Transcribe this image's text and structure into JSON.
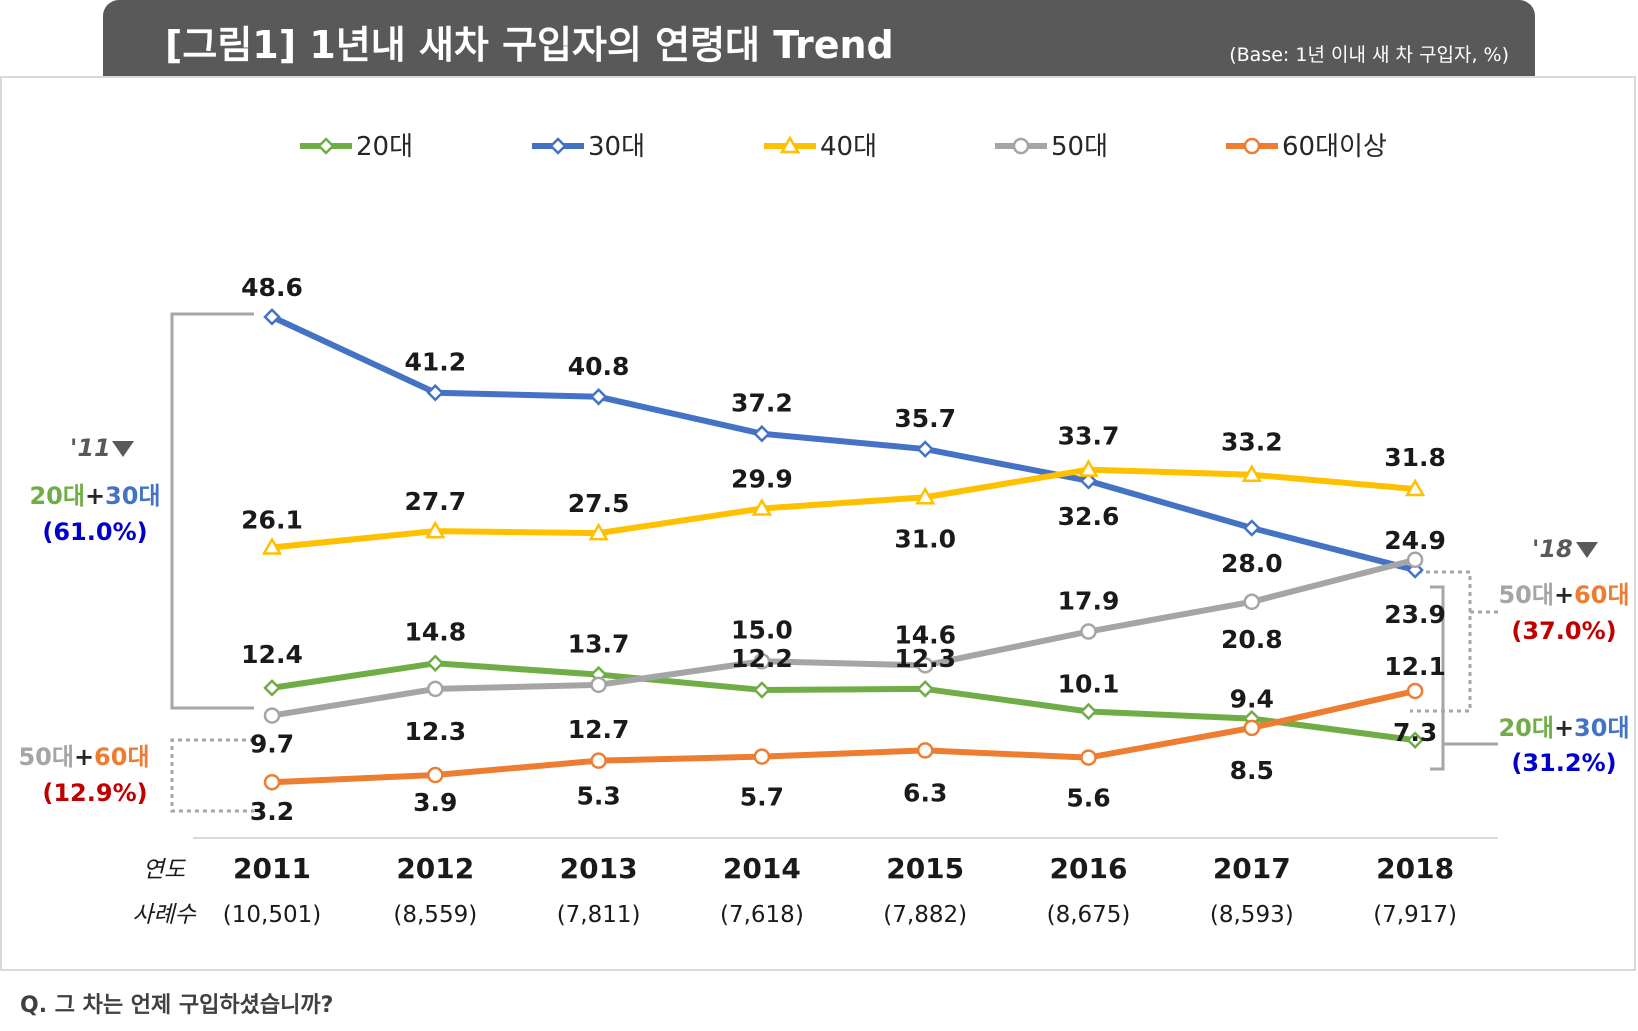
{
  "title": "[그림1] 1년내 새차 구입자의 연령대 Trend",
  "base_note": "(Base: 1년 이내 새 차 구입자, %)",
  "footnote": "Q. 그 차는 언제 구입하셨습니까?",
  "axis": {
    "year_label": "연도",
    "cases_label": "사례수"
  },
  "annotations": {
    "y2011": "'11",
    "y2018": "'18",
    "g2030": "20대",
    "g30": "30대",
    "g50": "50대",
    "g60": "60대",
    "plus": "+",
    "left_young_pct": "(61.0%)",
    "left_old_pct": "(12.9%)",
    "right_old_pct": "(37.0%)",
    "right_young_pct": "(31.2%)"
  },
  "colors": {
    "s20": "#70ad47",
    "s30": "#4472c4",
    "s40": "#ffc000",
    "s50": "#a5a5a5",
    "s60": "#ed7d31",
    "red": "#c00000",
    "blue": "#0000cc"
  },
  "chart_data": {
    "type": "line",
    "x": [
      "2011",
      "2012",
      "2013",
      "2014",
      "2015",
      "2016",
      "2017",
      "2018"
    ],
    "cases": [
      "(10,501)",
      "(8,559)",
      "(7,811)",
      "(7,618)",
      "(7,882)",
      "(8,675)",
      "(8,593)",
      "(7,917)"
    ],
    "legend_position": "top",
    "series": [
      {
        "name": "20대",
        "marker": "diamond",
        "values": [
          12.4,
          14.8,
          13.7,
          12.2,
          12.3,
          10.1,
          9.4,
          7.3
        ]
      },
      {
        "name": "30대",
        "marker": "diamond",
        "values": [
          48.6,
          41.2,
          40.8,
          37.2,
          35.7,
          32.6,
          28.0,
          23.9
        ]
      },
      {
        "name": "40대",
        "marker": "triangle",
        "values": [
          26.1,
          27.7,
          27.5,
          29.9,
          31.0,
          33.7,
          33.2,
          31.8
        ]
      },
      {
        "name": "50대",
        "marker": "circle",
        "values": [
          9.7,
          12.3,
          12.7,
          15.0,
          14.6,
          17.9,
          20.8,
          24.9
        ]
      },
      {
        "name": "60대이상",
        "marker": "circle",
        "values": [
          3.2,
          3.9,
          5.3,
          5.7,
          6.3,
          5.6,
          8.5,
          12.1
        ]
      }
    ]
  }
}
